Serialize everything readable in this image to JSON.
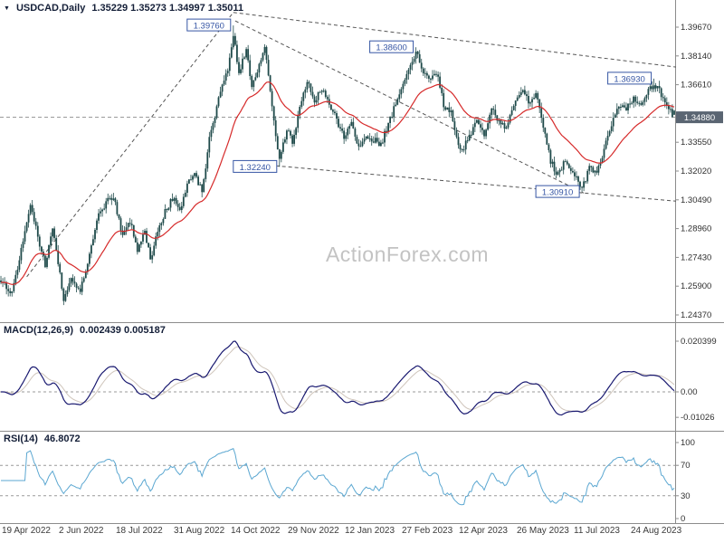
{
  "titles": {
    "main_symbol": "USDCAD,Daily",
    "main_ohlc": "1.35229 1.35273 1.34997 1.35011",
    "macd_label": "MACD(12,26,9)",
    "macd_values": "0.002439 0.005187",
    "rsi_label": "RSI(14)",
    "rsi_value": "46.8072"
  },
  "icons": {
    "symbol_marker": "▼"
  },
  "watermark": "ActionForex.com",
  "colors": {
    "candle": "#1f4a4a",
    "ma_line": "#d62a2a",
    "macd_line": "#191970",
    "macd_signal": "#cfc5bb",
    "rsi_line": "#5ba7d1",
    "level_label": "#3555a4",
    "trendline": "#555555",
    "price_tag_bg": "#5a6572",
    "axis_text": "#2e2e2e",
    "watermark": "#c3c3c3",
    "grid_dash": "#9a9a9a",
    "separator": "#8c8c8c"
  },
  "chart_data": {
    "type": "candlestick",
    "symbol": "USDCAD",
    "timeframe": "Daily",
    "legend_position": "top-left",
    "current_ohlc": {
      "open": 1.35229,
      "high": 1.35273,
      "low": 1.34997,
      "close": 1.35011
    },
    "current_bid": 1.3488,
    "current_bid_label": "1.34880",
    "price_axis_labels": [
      "1.39670",
      "1.38140",
      "1.36610",
      "1.33550",
      "1.32020",
      "1.30490",
      "1.28960",
      "1.27430",
      "1.25900",
      "1.24370"
    ],
    "price_axis_top_value": 1.3967,
    "price_axis_bottom_value": 1.2437,
    "candle_count": 366,
    "price_anchors": [
      [
        0,
        1.2615
      ],
      [
        6,
        1.255
      ],
      [
        10,
        1.2745
      ],
      [
        16,
        1.3035
      ],
      [
        21,
        1.2815
      ],
      [
        24,
        1.27
      ],
      [
        28,
        1.2895
      ],
      [
        34,
        1.2525
      ],
      [
        38,
        1.265
      ],
      [
        43,
        1.2565
      ],
      [
        47,
        1.2705
      ],
      [
        52,
        1.295
      ],
      [
        58,
        1.304
      ],
      [
        61,
        1.3075
      ],
      [
        66,
        1.285
      ],
      [
        70,
        1.2935
      ],
      [
        74,
        1.279
      ],
      [
        78,
        1.2885
      ],
      [
        81,
        1.273
      ],
      [
        85,
        1.2885
      ],
      [
        89,
        1.2985
      ],
      [
        93,
        1.306
      ],
      [
        97,
        1.2985
      ],
      [
        101,
        1.3135
      ],
      [
        105,
        1.3185
      ],
      [
        109,
        1.3095
      ],
      [
        113,
        1.337
      ],
      [
        117,
        1.3545
      ],
      [
        120,
        1.366
      ],
      [
        123,
        1.3745
      ],
      [
        126,
        1.393
      ],
      [
        129,
        1.371
      ],
      [
        133,
        1.3855
      ],
      [
        136,
        1.366
      ],
      [
        140,
        1.3755
      ],
      [
        143,
        1.3865
      ],
      [
        147,
        1.353
      ],
      [
        151,
        1.326
      ],
      [
        155,
        1.342
      ],
      [
        158,
        1.3365
      ],
      [
        162,
        1.353
      ],
      [
        166,
        1.368
      ],
      [
        170,
        1.3575
      ],
      [
        174,
        1.364
      ],
      [
        178,
        1.356
      ],
      [
        182,
        1.347
      ],
      [
        186,
        1.339
      ],
      [
        190,
        1.3445
      ],
      [
        194,
        1.333
      ],
      [
        198,
        1.3395
      ],
      [
        202,
        1.337
      ],
      [
        206,
        1.3345
      ],
      [
        210,
        1.345
      ],
      [
        214,
        1.3555
      ],
      [
        218,
        1.366
      ],
      [
        222,
        1.376
      ],
      [
        225,
        1.384
      ],
      [
        228,
        1.3755
      ],
      [
        232,
        1.3675
      ],
      [
        236,
        1.373
      ],
      [
        240,
        1.356
      ],
      [
        244,
        1.3505
      ],
      [
        248,
        1.3355
      ],
      [
        250,
        1.3315
      ],
      [
        254,
        1.3385
      ],
      [
        258,
        1.347
      ],
      [
        262,
        1.339
      ],
      [
        266,
        1.354
      ],
      [
        270,
        1.346
      ],
      [
        274,
        1.3425
      ],
      [
        278,
        1.3565
      ],
      [
        282,
        1.3635
      ],
      [
        286,
        1.3565
      ],
      [
        290,
        1.3615
      ],
      [
        294,
        1.343
      ],
      [
        298,
        1.3255
      ],
      [
        302,
        1.318
      ],
      [
        306,
        1.3255
      ],
      [
        310,
        1.3185
      ],
      [
        315,
        1.311
      ],
      [
        319,
        1.3215
      ],
      [
        323,
        1.3185
      ],
      [
        327,
        1.3315
      ],
      [
        331,
        1.3445
      ],
      [
        335,
        1.355
      ],
      [
        339,
        1.3525
      ],
      [
        343,
        1.3595
      ],
      [
        347,
        1.3555
      ],
      [
        351,
        1.3635
      ],
      [
        354,
        1.3665
      ],
      [
        357,
        1.3625
      ],
      [
        360,
        1.3575
      ],
      [
        363,
        1.3515
      ],
      [
        365,
        1.3501
      ]
    ],
    "key_levels": [
      {
        "label": "1.39760",
        "price": 1.3976,
        "day": 126,
        "kind": "high"
      },
      {
        "label": "1.38600",
        "price": 1.386,
        "day": 225,
        "kind": "high"
      },
      {
        "label": "1.36930",
        "price": 1.3693,
        "day": 354,
        "kind": "high"
      },
      {
        "label": "1.32240",
        "price": 1.3224,
        "day": 151,
        "kind": "low"
      },
      {
        "label": "1.30910",
        "price": 1.3091,
        "day": 315,
        "kind": "low"
      }
    ],
    "trendlines": [
      {
        "from": {
          "day": 14,
          "price": 1.264
        },
        "to": {
          "day": 126,
          "price": 1.4045
        }
      },
      {
        "from": {
          "day": 126,
          "price": 1.4045
        },
        "to": {
          "day": 366,
          "price": 1.3755
        }
      },
      {
        "from": {
          "day": 127,
          "price": 1.4
        },
        "to": {
          "day": 316,
          "price": 1.3085
        }
      },
      {
        "from": {
          "day": 149,
          "price": 1.323
        },
        "to": {
          "day": 366,
          "price": 1.3042
        }
      }
    ],
    "indicators": {
      "ma": {
        "period": 30
      },
      "macd": {
        "fast": 12,
        "slow": 26,
        "signal": 9,
        "current": 0.002439,
        "current_signal": 0.005187,
        "axis_max_value": 0.020399,
        "axis_labels": [
          {
            "text": "0.020399",
            "value": 0.020399
          },
          {
            "text": "0.00",
            "value": 0
          },
          {
            "text": "-0.01026",
            "value": -0.01026
          }
        ]
      },
      "rsi": {
        "period": 14,
        "current": 46.8072,
        "guide_levels": [
          70,
          30
        ],
        "axis_labels": [
          {
            "text": "100",
            "value": 100
          },
          {
            "text": "70",
            "value": 70
          },
          {
            "text": "30",
            "value": 30
          },
          {
            "text": "0",
            "value": 0
          }
        ]
      }
    },
    "x_axis": {
      "dates": [
        "19 Apr 2022",
        "2 Jun 2022",
        "18 Jul 2022",
        "31 Aug 2022",
        "14 Oct 2022",
        "29 Nov 2022",
        "12 Jan 2023",
        "27 Feb 2023",
        "12 Apr 2023",
        "26 May 2023",
        "11 Jul 2023",
        "24 Aug 2023"
      ],
      "label_days": [
        0,
        31,
        62,
        93,
        124,
        155,
        186,
        217,
        248,
        279,
        310,
        341
      ]
    }
  }
}
